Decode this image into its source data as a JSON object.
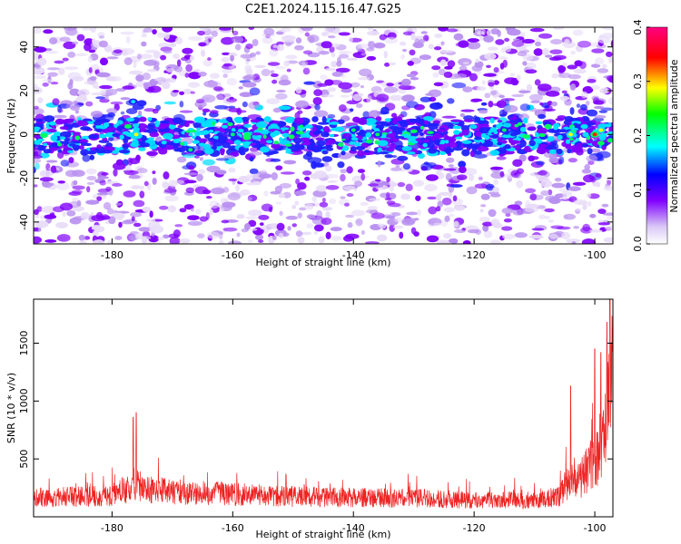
{
  "title": "C2E1.2024.115.16.47.G25",
  "chart_data": [
    {
      "type": "heatmap",
      "xlabel": "Height of straight line (km)",
      "ylabel": "Frequency (Hz)",
      "xlim": [
        -193,
        -97
      ],
      "ylim": [
        -50,
        49
      ],
      "xticks": [
        -180,
        -160,
        -140,
        -120,
        -100
      ],
      "yticks": [
        -40,
        -20,
        0,
        20,
        40
      ],
      "grid": false,
      "colorbar": {
        "label": "Normalized spectral amplitude",
        "range": [
          0,
          0.4
        ],
        "ticks": [
          "0.0",
          "0.1",
          "0.2",
          "0.3",
          "0.4"
        ],
        "colors": [
          "#ffffff",
          "#d9c8f5",
          "#8000ff",
          "#0000ff",
          "#00ffff",
          "#00ff00",
          "#ffff00",
          "#ff0000",
          "#ff0080"
        ]
      },
      "description_of_data": "Broadband noise everywhere, strongest band centered near 0 Hz (about -10 to +8 Hz) across the full height range; hotspots near -177, -176, -167, -104, -100 km"
    },
    {
      "type": "line",
      "xlabel": "Height of straight line (km)",
      "ylabel": "SNR (10 * v/v)",
      "xlim": [
        -193,
        -97
      ],
      "ylim": [
        0,
        1880
      ],
      "xticks": [
        -180,
        -160,
        -140,
        -120,
        -100
      ],
      "yticks": [
        500,
        1000,
        1500
      ],
      "grid": false,
      "series": [
        {
          "color": "#ee2222",
          "envelope_x": [
            -193,
            -186,
            -180,
            -177,
            -176,
            -175,
            -170,
            -160,
            -150,
            -140,
            -130,
            -120,
            -110,
            -106,
            -104,
            -103,
            -102,
            -100,
            -99,
            -98,
            -97.5,
            -97
          ],
          "envelope_y": [
            230,
            240,
            260,
            350,
            420,
            330,
            300,
            270,
            240,
            230,
            220,
            200,
            200,
            240,
            430,
            380,
            500,
            650,
            850,
            1100,
            1500,
            1700
          ],
          "peak_x": [
            -176.5,
            -176,
            -104,
            -100,
            -99,
            -98,
            -97.5
          ],
          "peak_y": [
            860,
            900,
            1130,
            1450,
            1420,
            1680,
            1880
          ]
        }
      ]
    }
  ]
}
